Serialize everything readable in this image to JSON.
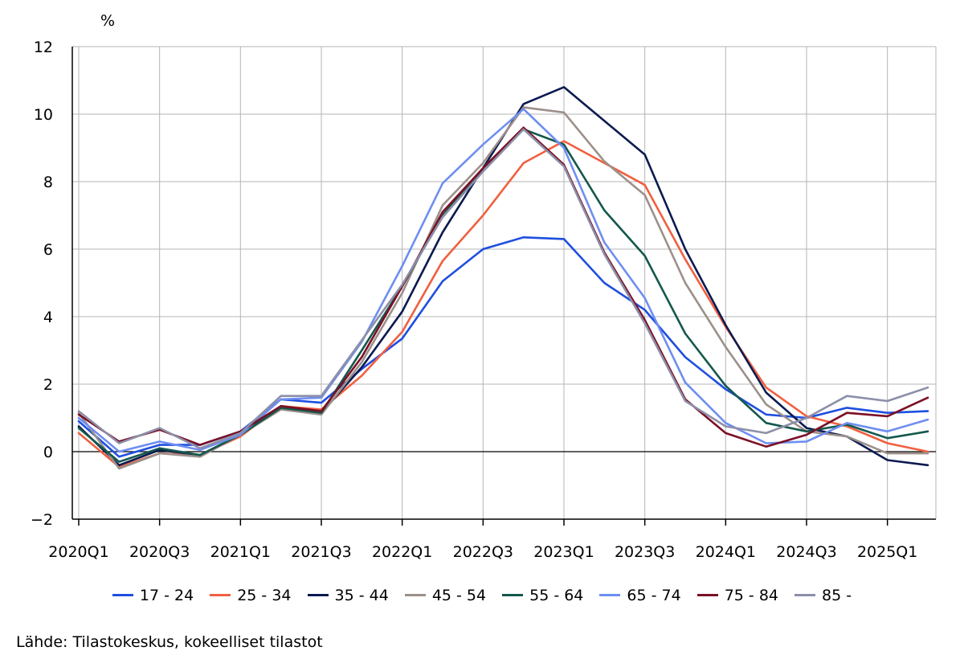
{
  "chart_data": {
    "type": "line",
    "unit_label": "%",
    "ylim": [
      -2,
      12
    ],
    "yticks": [
      -2,
      0,
      2,
      4,
      6,
      8,
      10,
      12
    ],
    "ytick_labels": [
      "−2",
      "0",
      "2",
      "4",
      "6",
      "8",
      "10",
      "12"
    ],
    "x": [
      "2020Q1",
      "2020Q2",
      "2020Q3",
      "2020Q4",
      "2021Q1",
      "2021Q2",
      "2021Q3",
      "2021Q4",
      "2022Q1",
      "2022Q2",
      "2022Q3",
      "2022Q4",
      "2023Q1",
      "2023Q2",
      "2023Q3",
      "2023Q4",
      "2024Q1",
      "2024Q2",
      "2024Q3",
      "2024Q4",
      "2025Q1",
      "2025Q2"
    ],
    "xtick_labels": [
      "2020Q1",
      "",
      "2020Q3",
      "",
      "2021Q1",
      "",
      "2021Q3",
      "",
      "2022Q1",
      "",
      "2022Q3",
      "",
      "2023Q1",
      "",
      "2023Q3",
      "",
      "2024Q1",
      "",
      "2024Q3",
      "",
      "2025Q1",
      ""
    ],
    "grid": true,
    "legend_position": "bottom",
    "series": [
      {
        "name": "17 - 24",
        "color": "#1f4fe0",
        "values": [
          0.9,
          -0.15,
          0.2,
          0.2,
          0.6,
          1.55,
          1.45,
          2.45,
          3.35,
          5.05,
          6.0,
          6.35,
          6.3,
          5.0,
          4.2,
          2.8,
          1.85,
          1.1,
          1.0,
          1.3,
          1.15,
          1.2
        ]
      },
      {
        "name": "25 - 34",
        "color": "#f06040",
        "values": [
          0.55,
          -0.45,
          -0.05,
          -0.1,
          0.45,
          1.35,
          1.25,
          2.25,
          3.55,
          5.65,
          7.0,
          8.55,
          9.2,
          8.55,
          7.9,
          5.7,
          3.7,
          1.9,
          1.05,
          0.75,
          0.25,
          0.0
        ]
      },
      {
        "name": "35 - 44",
        "color": "#0b1a50",
        "values": [
          0.75,
          -0.4,
          0.05,
          -0.1,
          0.5,
          1.35,
          1.15,
          2.5,
          4.15,
          6.5,
          8.4,
          10.3,
          10.8,
          9.8,
          8.8,
          6.0,
          3.75,
          1.75,
          0.7,
          0.45,
          -0.25,
          -0.4
        ]
      },
      {
        "name": "45 - 54",
        "color": "#9c908a",
        "values": [
          1.15,
          -0.5,
          -0.05,
          -0.15,
          0.5,
          1.25,
          1.1,
          2.65,
          4.7,
          7.3,
          8.55,
          10.2,
          10.05,
          8.6,
          7.6,
          5.0,
          3.1,
          1.4,
          0.6,
          0.45,
          -0.05,
          -0.05
        ]
      },
      {
        "name": "55 - 64",
        "color": "#14584c",
        "values": [
          0.7,
          -0.3,
          0.1,
          -0.1,
          0.5,
          1.3,
          1.15,
          3.0,
          4.9,
          7.0,
          8.4,
          9.55,
          9.1,
          7.15,
          5.8,
          3.5,
          1.95,
          0.85,
          0.6,
          0.8,
          0.4,
          0.6
        ]
      },
      {
        "name": "65 - 74",
        "color": "#6e8ef0",
        "values": [
          1.0,
          0.0,
          0.3,
          0.05,
          0.5,
          1.55,
          1.6,
          3.25,
          5.5,
          7.95,
          9.1,
          10.15,
          9.0,
          6.2,
          4.55,
          2.05,
          0.85,
          0.25,
          0.3,
          0.85,
          0.6,
          0.95
        ]
      },
      {
        "name": "75 - 84",
        "color": "#7a1026",
        "values": [
          1.1,
          0.3,
          0.65,
          0.2,
          0.6,
          1.35,
          1.2,
          2.8,
          4.9,
          7.1,
          8.4,
          9.6,
          8.5,
          5.9,
          3.9,
          1.55,
          0.55,
          0.15,
          0.5,
          1.15,
          1.05,
          1.6
        ]
      },
      {
        "name": "85 -",
        "color": "#8c8fa8",
        "values": [
          1.2,
          0.25,
          0.7,
          0.1,
          0.55,
          1.65,
          1.65,
          3.3,
          4.95,
          6.95,
          8.3,
          9.55,
          8.45,
          5.85,
          3.8,
          1.5,
          0.75,
          0.55,
          1.0,
          1.65,
          1.5,
          1.9
        ]
      }
    ]
  },
  "source_text": "Lähde: Tilastokeskus, kokeelliset tilastot"
}
